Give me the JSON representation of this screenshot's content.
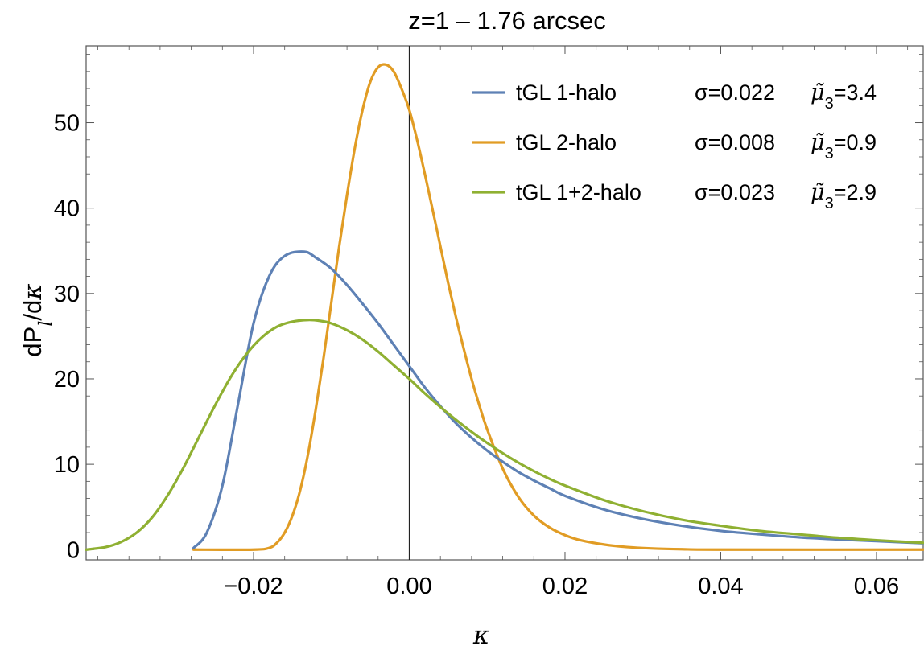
{
  "chart_data": {
    "type": "line",
    "title": "z=1 – 1.76 arcsec",
    "xlabel": "κ",
    "ylabel": "dP_l/dκ",
    "xlim": [
      -0.0415,
      0.066
    ],
    "ylim": [
      -1.2,
      59.0
    ],
    "xticks": [
      -0.02,
      0.0,
      0.02,
      0.04,
      0.06
    ],
    "xtick_labels": [
      "−0.02",
      "0.00",
      "0.02",
      "0.04",
      "0.06"
    ],
    "yticks": [
      0,
      10,
      20,
      30,
      40,
      50
    ],
    "ytick_labels": [
      "0",
      "10",
      "20",
      "30",
      "40",
      "50"
    ],
    "grid": false,
    "legend_position": "top-right",
    "colors": {
      "one_halo": "#5e81b5",
      "two_halo": "#e19c24",
      "combined": "#8fb032"
    },
    "series": [
      {
        "name": "tGL 1-halo",
        "sigma_text": "σ=0.022",
        "mu3_value": "=3.4",
        "color": "#5e81b5",
        "x": [
          -0.0277,
          -0.026,
          -0.024,
          -0.022,
          -0.02,
          -0.018,
          -0.016,
          -0.0135,
          -0.012,
          -0.01,
          -0.008,
          -0.006,
          -0.004,
          -0.002,
          0.0,
          0.002,
          0.004,
          0.006,
          0.008,
          0.01,
          0.012,
          0.014,
          0.016,
          0.018,
          0.02,
          0.025,
          0.03,
          0.035,
          0.04,
          0.045,
          0.05,
          0.055,
          0.06,
          0.066
        ],
        "y": [
          0.2,
          2.0,
          7.5,
          17.0,
          26.5,
          32.0,
          34.4,
          34.9,
          34.2,
          32.9,
          31.0,
          28.8,
          26.5,
          24.0,
          21.5,
          19.0,
          16.8,
          14.8,
          13.1,
          11.6,
          10.3,
          9.1,
          8.1,
          7.2,
          6.3,
          4.7,
          3.6,
          2.8,
          2.2,
          1.8,
          1.45,
          1.2,
          1.0,
          0.75
        ]
      },
      {
        "name": "tGL 2-halo",
        "sigma_text": "σ=0.008",
        "mu3_value": "=0.9",
        "color": "#e19c24",
        "x": [
          -0.0277,
          -0.02,
          -0.018,
          -0.017,
          -0.016,
          -0.015,
          -0.014,
          -0.013,
          -0.012,
          -0.011,
          -0.01,
          -0.009,
          -0.008,
          -0.007,
          -0.006,
          -0.005,
          -0.004,
          -0.003,
          -0.002,
          -0.001,
          0.0,
          0.001,
          0.002,
          0.003,
          0.004,
          0.005,
          0.006,
          0.007,
          0.008,
          0.009,
          0.01,
          0.012,
          0.014,
          0.016,
          0.018,
          0.02,
          0.022,
          0.025,
          0.028,
          0.031,
          0.035,
          0.04,
          0.066
        ],
        "y": [
          0.0,
          0.0,
          0.2,
          0.8,
          2.0,
          4.0,
          7.0,
          11.2,
          16.5,
          22.5,
          29.0,
          35.5,
          41.5,
          47.0,
          51.5,
          54.8,
          56.5,
          56.8,
          56.0,
          54.0,
          51.5,
          48.0,
          44.0,
          39.8,
          35.5,
          31.2,
          27.2,
          23.5,
          20.0,
          16.9,
          14.1,
          9.5,
          6.2,
          4.0,
          2.6,
          1.7,
          1.1,
          0.6,
          0.3,
          0.15,
          0.05,
          0.0,
          0.0
        ]
      },
      {
        "name": "tGL 1+2-halo",
        "sigma_text": "σ=0.023",
        "mu3_value": "=2.9",
        "color": "#8fb032",
        "x": [
          -0.0415,
          -0.039,
          -0.037,
          -0.035,
          -0.033,
          -0.031,
          -0.029,
          -0.027,
          -0.025,
          -0.023,
          -0.021,
          -0.019,
          -0.017,
          -0.015,
          -0.013,
          -0.0115,
          -0.01,
          -0.008,
          -0.006,
          -0.004,
          -0.002,
          0.0,
          0.002,
          0.004,
          0.006,
          0.008,
          0.01,
          0.012,
          0.014,
          0.016,
          0.018,
          0.02,
          0.025,
          0.03,
          0.035,
          0.04,
          0.045,
          0.05,
          0.055,
          0.06,
          0.066
        ],
        "y": [
          0.0,
          0.3,
          0.9,
          2.0,
          3.8,
          6.4,
          9.6,
          13.2,
          16.8,
          20.1,
          22.8,
          24.8,
          26.1,
          26.7,
          26.9,
          26.8,
          26.5,
          25.7,
          24.6,
          23.2,
          21.6,
          20.0,
          18.3,
          16.7,
          15.2,
          13.8,
          12.5,
          11.3,
          10.2,
          9.2,
          8.3,
          7.5,
          5.8,
          4.5,
          3.5,
          2.8,
          2.2,
          1.8,
          1.4,
          1.1,
          0.8
        ]
      }
    ]
  }
}
